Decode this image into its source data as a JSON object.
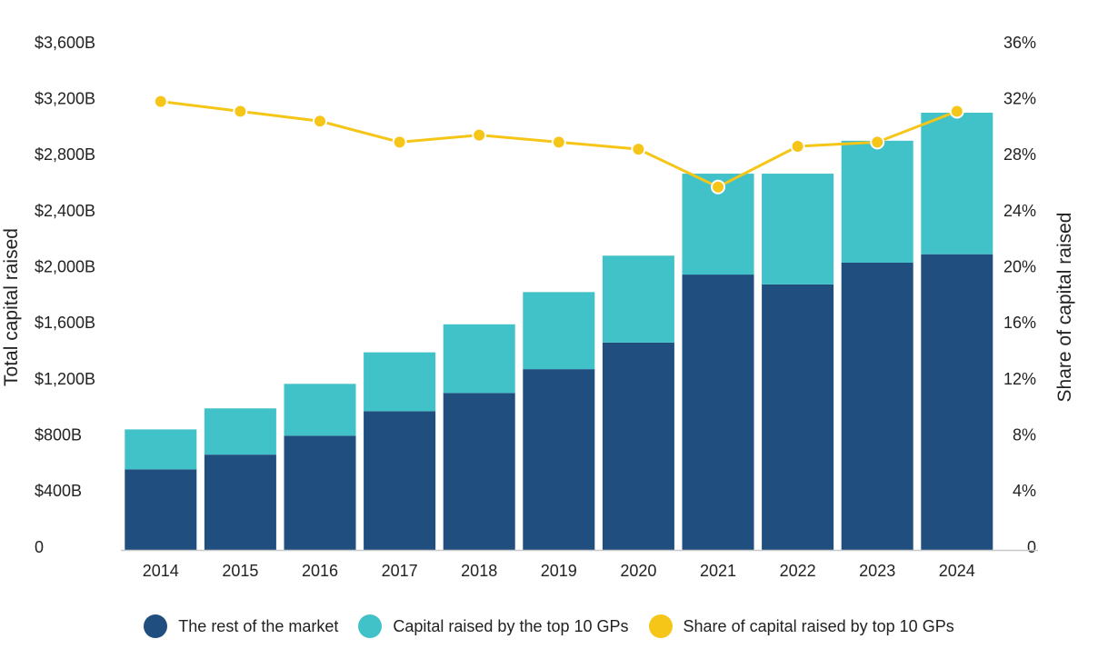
{
  "chart_data": {
    "type": "bar",
    "stacked": true,
    "categories": [
      "2014",
      "2015",
      "2016",
      "2017",
      "2018",
      "2019",
      "2020",
      "2021",
      "2022",
      "2023",
      "2024"
    ],
    "ylabel": "Total capital raised",
    "y2label": "Share of capital raised",
    "ylim": [
      0,
      3600
    ],
    "y2lim": [
      0,
      36
    ],
    "yticks": [
      "0",
      "$400B",
      "$800B",
      "$1,200B",
      "$1,600B",
      "$2,000B",
      "$2,400B",
      "$2,800B",
      "$3,200B",
      "$3,600B"
    ],
    "y2ticks": [
      "0",
      "4%",
      "8%",
      "12%",
      "16%",
      "20%",
      "24%",
      "28%",
      "32%",
      "36%"
    ],
    "grid": false,
    "legend_position": "bottom",
    "series": [
      {
        "name": "The rest of the market",
        "kind": "bar",
        "axis": "left",
        "color": "#1f4e7f",
        "values": [
          575,
          680,
          815,
          990,
          1120,
          1290,
          1480,
          1965,
          1895,
          2050,
          2110
        ]
      },
      {
        "name": "Capital raised by the top 10 GPs",
        "kind": "bar",
        "axis": "left",
        "color": "#41c1c8",
        "values": [
          285,
          330,
          370,
          420,
          490,
          550,
          620,
          720,
          790,
          870,
          1010
        ]
      },
      {
        "name": "Share of capital raised by top 10 GPs",
        "kind": "line",
        "axis": "right",
        "color": "#f5c518",
        "values": [
          32.0,
          31.3,
          30.6,
          29.1,
          29.6,
          29.1,
          28.6,
          25.9,
          28.8,
          29.1,
          31.3
        ]
      }
    ]
  }
}
